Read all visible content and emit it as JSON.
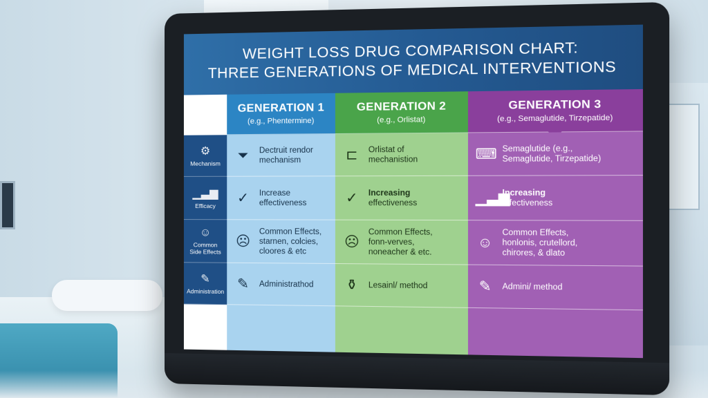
{
  "title": {
    "line1": "WEIGHT LOSS DRUG COMPARISON CHART:",
    "line2": "THREE GENERATIONS OF MEDICAL INTERVENTIONS"
  },
  "columns": [
    {
      "title": "GENERATION 1",
      "subtitle": "(e.g., Phentermine)",
      "color": "#2c85c4"
    },
    {
      "title": "GENERATION 2",
      "subtitle": "(e.g., Orlistat)",
      "color": "#4aa44a"
    },
    {
      "title": "GENERATION 3",
      "subtitle": "(e.g., Semaglutide, Tirzepatide)",
      "color": "#8a3f9c"
    }
  ],
  "rows": [
    {
      "label": "Mechanism",
      "icon": "gear-brain-icon",
      "cells": [
        {
          "icon": "funnel-icon",
          "text": "Dectruit rendor\nmechanism"
        },
        {
          "icon": "capsule-icon",
          "text": "Orlistat of\nmechanistion"
        },
        {
          "icon": "device-icon",
          "text": "Semaglutide (e.g.,\nSemaglutide, Tirzepatide)"
        }
      ]
    },
    {
      "label": "Efficacy",
      "icon": "bar-chart-icon",
      "cells": [
        {
          "icon": "check-circle-icon",
          "text": "Increase\neffectiveness"
        },
        {
          "icon": "check-circle-icon",
          "text": "Increasing\neffectiveness",
          "bold_first": true
        },
        {
          "icon": "bar-chart-icon",
          "text": "Increasing\neffectiveness",
          "bold_first": true
        }
      ]
    },
    {
      "label": "Common\nSide Effects",
      "icon": "person-icon",
      "cells": [
        {
          "icon": "sad-face-icon",
          "text": "Common Effects,\nstarnen, colcies,\ncloores & etc"
        },
        {
          "icon": "sad-face-icon",
          "text": "Common Effects,\nfonn-verves,\nnoneacher & etc."
        },
        {
          "icon": "person-icon",
          "text": "Common Effects,\nhonlonis, crutellord,\nchirores, & dlato"
        }
      ]
    },
    {
      "label": "Administration",
      "icon": "syringe-icon",
      "cells": [
        {
          "icon": "syringe-icon",
          "text": "Administrathod"
        },
        {
          "icon": "pill-bottle-icon",
          "text": "Lesainl/ method"
        },
        {
          "icon": "syringe-icon",
          "text": "Admini/ method"
        }
      ]
    }
  ]
}
